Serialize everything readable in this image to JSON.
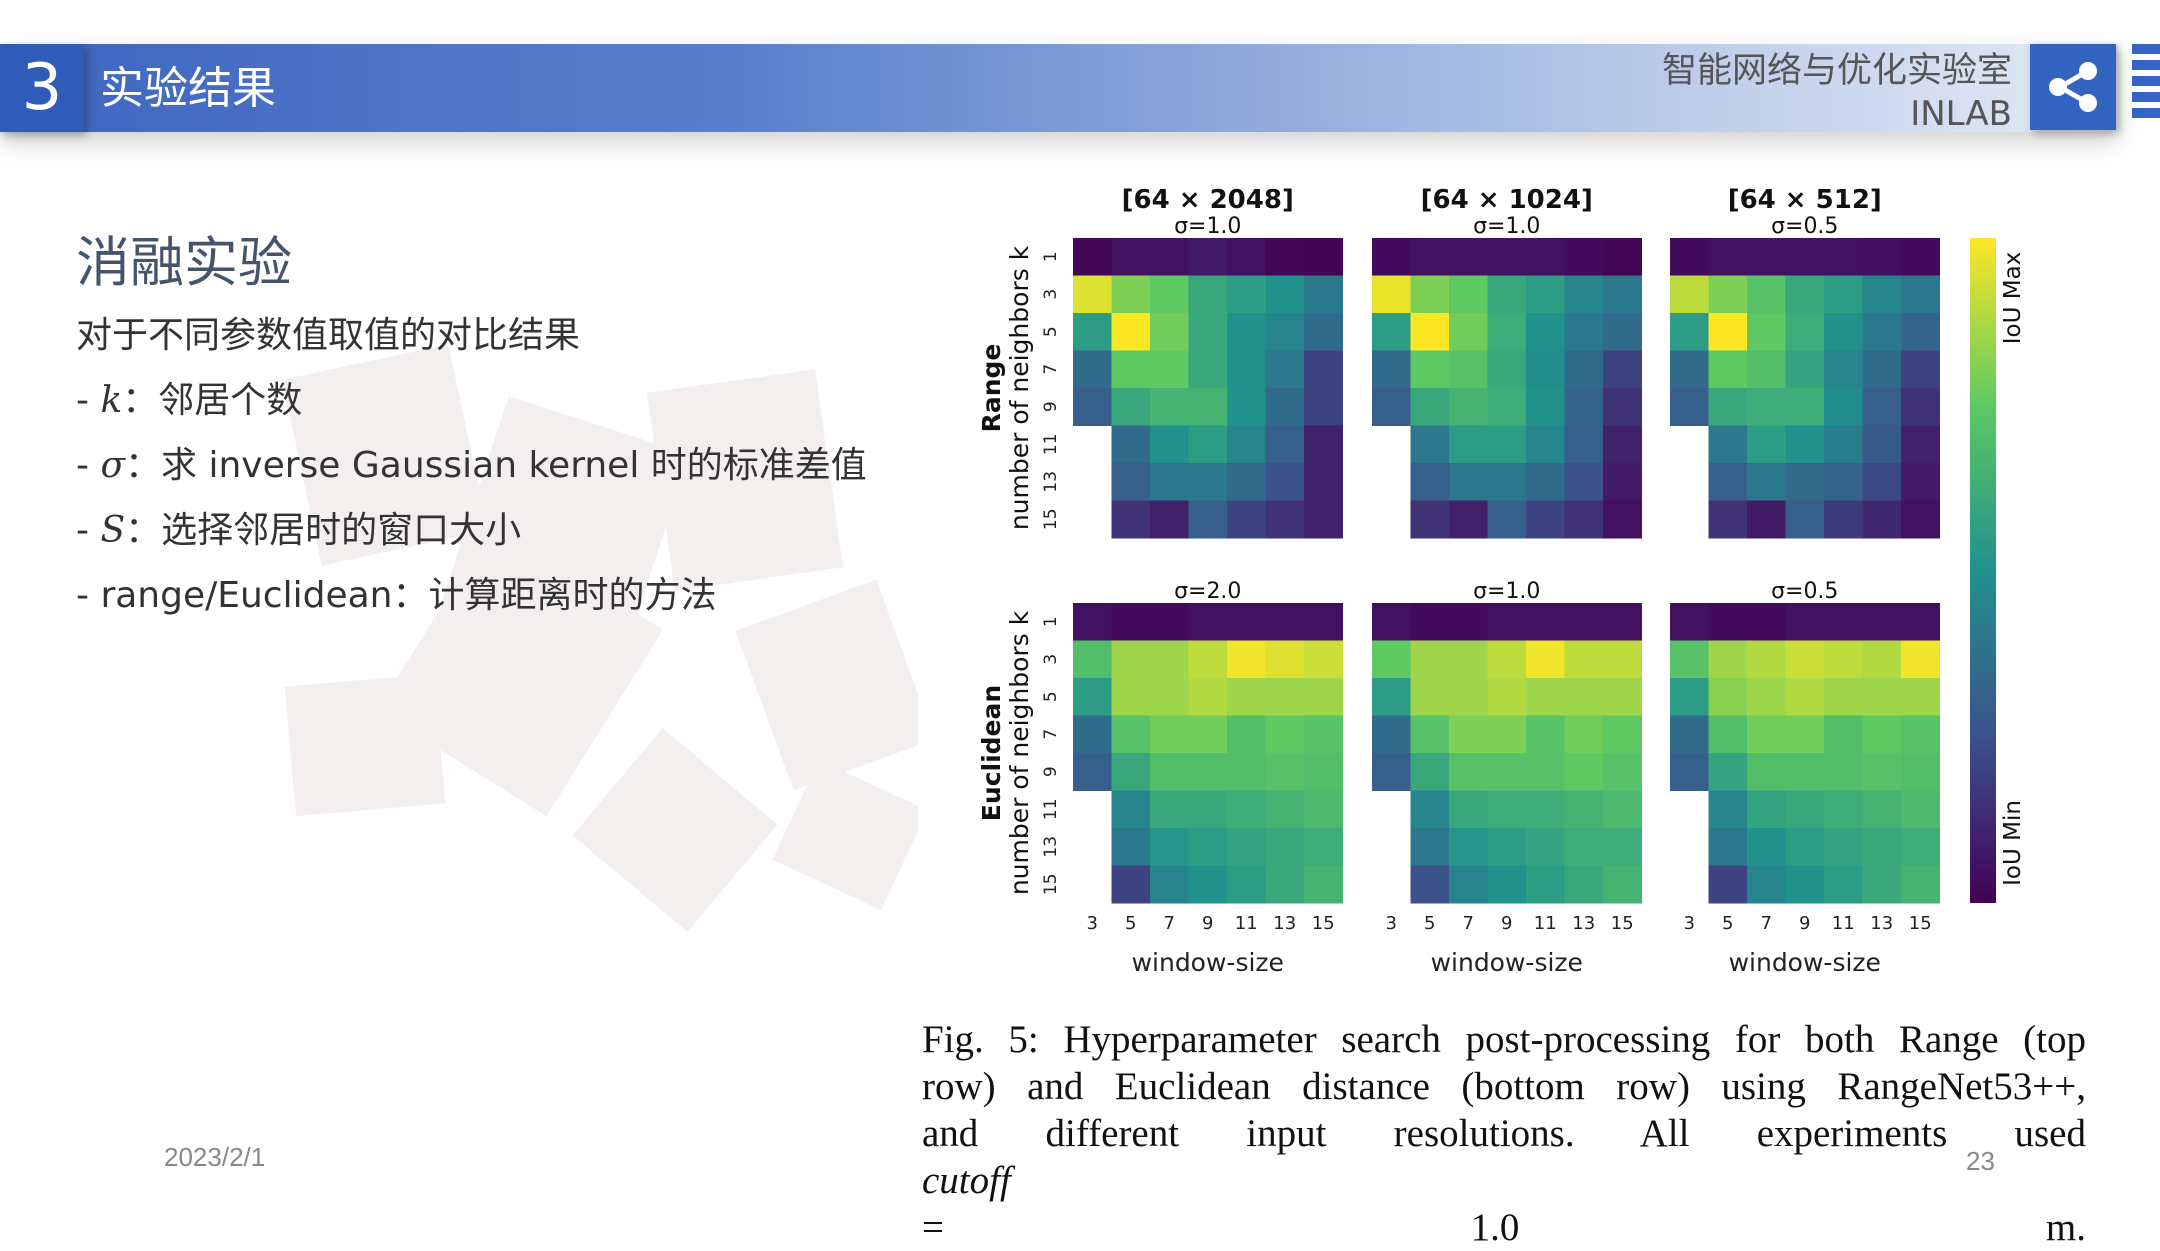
{
  "header": {
    "section_number": "3",
    "section_title": "实验结果",
    "lab_name": "智能网络与优化实验室",
    "lab_code": "INLAB",
    "share_icon": "share-icon",
    "menu_icon": "menu-icon",
    "brand_color": "#3563c2"
  },
  "content": {
    "title": "消融实验",
    "intro": "对于不同参数值取值的对比结果",
    "items": [
      {
        "prefix": "- ",
        "symbol": "k",
        "text": "：邻居个数"
      },
      {
        "prefix": "- ",
        "symbol": "σ",
        "text": "：求 inverse Gaussian kernel 时的标准差值"
      },
      {
        "prefix": "- ",
        "symbol": "S",
        "text": "：选择邻居时的窗口大小"
      },
      {
        "prefix": "- ",
        "symbol": "",
        "text": "range/Euclidean：计算距离时的方法"
      }
    ]
  },
  "footer": {
    "date": "2023/2/1",
    "page": "23"
  },
  "figure": {
    "caption_lines": [
      "Fig. 5: Hyperparameter search post-processing for both Range (top",
      "row) and Euclidean distance (bottom row) using RangeNet53++,",
      "and different input resolutions. All experiments used "
    ],
    "caption_italic": "cutoff",
    "caption_end": " = 1.0 m."
  },
  "chart_data": {
    "type": "heatmap",
    "colormap": "viridis",
    "colorbar": {
      "max_label": "IoU Max",
      "min_label": "IoU Min"
    },
    "x_ticks": [
      "3",
      "5",
      "7",
      "9",
      "11",
      "13",
      "15"
    ],
    "y_ticks": [
      "1",
      "3",
      "5",
      "7",
      "9",
      "11",
      "13",
      "15"
    ],
    "xlabel": "window-size",
    "ylabel_sub": "number of neighbors k",
    "row_labels": [
      "Range",
      "Euclidean"
    ],
    "col_titles": [
      "[64 × 2048]",
      "[64 × 1024]",
      "[64 × 512]"
    ],
    "panels": [
      {
        "row": 0,
        "col": 0,
        "title": "[64 × 2048]",
        "subtitle": "σ=1.0",
        "values": [
          [
            0.02,
            0.05,
            0.05,
            0.08,
            0.05,
            0.02,
            0.01
          ],
          [
            0.95,
            0.8,
            0.75,
            0.6,
            0.55,
            0.5,
            0.4
          ],
          [
            0.55,
            1.0,
            0.78,
            0.6,
            0.5,
            0.45,
            0.35
          ],
          [
            0.35,
            0.75,
            0.75,
            0.6,
            0.5,
            0.4,
            0.2
          ],
          [
            0.3,
            0.6,
            0.65,
            0.65,
            0.5,
            0.35,
            0.2
          ],
          [
            null,
            0.35,
            0.5,
            0.55,
            0.45,
            0.3,
            0.1
          ],
          [
            null,
            0.3,
            0.4,
            0.4,
            0.35,
            0.25,
            0.1
          ],
          [
            null,
            0.15,
            0.1,
            0.3,
            0.2,
            0.15,
            0.1
          ]
        ]
      },
      {
        "row": 0,
        "col": 1,
        "title": "[64 × 1024]",
        "subtitle": "σ=1.0",
        "values": [
          [
            0.03,
            0.05,
            0.05,
            0.05,
            0.05,
            0.03,
            0.02
          ],
          [
            0.97,
            0.8,
            0.75,
            0.6,
            0.55,
            0.45,
            0.4
          ],
          [
            0.55,
            1.0,
            0.78,
            0.62,
            0.5,
            0.4,
            0.35
          ],
          [
            0.35,
            0.75,
            0.72,
            0.6,
            0.48,
            0.35,
            0.2
          ],
          [
            0.3,
            0.6,
            0.65,
            0.62,
            0.5,
            0.32,
            0.15
          ],
          [
            null,
            0.4,
            0.55,
            0.55,
            0.45,
            0.3,
            0.1
          ],
          [
            null,
            0.3,
            0.4,
            0.4,
            0.35,
            0.25,
            0.08
          ],
          [
            null,
            0.15,
            0.1,
            0.3,
            0.2,
            0.15,
            0.05
          ]
        ]
      },
      {
        "row": 0,
        "col": 2,
        "title": "[64 × 512]",
        "subtitle": "σ=0.5",
        "values": [
          [
            0.03,
            0.05,
            0.05,
            0.05,
            0.05,
            0.04,
            0.03
          ],
          [
            0.9,
            0.8,
            0.72,
            0.6,
            0.55,
            0.45,
            0.4
          ],
          [
            0.55,
            1.0,
            0.75,
            0.62,
            0.5,
            0.4,
            0.32
          ],
          [
            0.35,
            0.75,
            0.7,
            0.58,
            0.45,
            0.35,
            0.2
          ],
          [
            0.3,
            0.6,
            0.62,
            0.62,
            0.48,
            0.3,
            0.15
          ],
          [
            null,
            0.4,
            0.55,
            0.5,
            0.42,
            0.28,
            0.1
          ],
          [
            null,
            0.3,
            0.4,
            0.35,
            0.32,
            0.22,
            0.08
          ],
          [
            null,
            0.15,
            0.08,
            0.3,
            0.18,
            0.12,
            0.05
          ]
        ]
      },
      {
        "row": 1,
        "col": 0,
        "title": "",
        "subtitle": "σ=2.0",
        "values": [
          [
            0.05,
            0.03,
            0.03,
            0.05,
            0.05,
            0.05,
            0.05
          ],
          [
            0.7,
            0.85,
            0.85,
            0.9,
            0.98,
            0.95,
            0.92
          ],
          [
            0.55,
            0.85,
            0.85,
            0.88,
            0.85,
            0.85,
            0.85
          ],
          [
            0.35,
            0.72,
            0.78,
            0.78,
            0.7,
            0.75,
            0.72
          ],
          [
            0.3,
            0.6,
            0.7,
            0.7,
            0.7,
            0.72,
            0.7
          ],
          [
            null,
            0.45,
            0.6,
            0.6,
            0.62,
            0.65,
            0.68
          ],
          [
            null,
            0.4,
            0.52,
            0.55,
            0.58,
            0.6,
            0.62
          ],
          [
            null,
            0.2,
            0.45,
            0.5,
            0.55,
            0.6,
            0.65
          ]
        ]
      },
      {
        "row": 1,
        "col": 1,
        "title": "",
        "subtitle": "σ=1.0",
        "values": [
          [
            0.05,
            0.03,
            0.03,
            0.05,
            0.05,
            0.05,
            0.05
          ],
          [
            0.75,
            0.85,
            0.85,
            0.9,
            0.98,
            0.9,
            0.9
          ],
          [
            0.55,
            0.85,
            0.85,
            0.88,
            0.85,
            0.85,
            0.85
          ],
          [
            0.35,
            0.72,
            0.8,
            0.8,
            0.72,
            0.78,
            0.75
          ],
          [
            0.3,
            0.6,
            0.72,
            0.72,
            0.72,
            0.75,
            0.72
          ],
          [
            null,
            0.45,
            0.6,
            0.62,
            0.62,
            0.65,
            0.68
          ],
          [
            null,
            0.4,
            0.52,
            0.55,
            0.58,
            0.62,
            0.62
          ],
          [
            null,
            0.25,
            0.45,
            0.5,
            0.55,
            0.6,
            0.65
          ]
        ]
      },
      {
        "row": 1,
        "col": 2,
        "title": "",
        "subtitle": "σ=0.5",
        "values": [
          [
            0.05,
            0.03,
            0.03,
            0.05,
            0.05,
            0.05,
            0.05
          ],
          [
            0.72,
            0.85,
            0.88,
            0.92,
            0.9,
            0.88,
            0.98
          ],
          [
            0.55,
            0.82,
            0.85,
            0.88,
            0.85,
            0.85,
            0.85
          ],
          [
            0.35,
            0.7,
            0.78,
            0.78,
            0.7,
            0.75,
            0.72
          ],
          [
            0.3,
            0.58,
            0.7,
            0.7,
            0.7,
            0.72,
            0.7
          ],
          [
            null,
            0.45,
            0.58,
            0.6,
            0.62,
            0.65,
            0.68
          ],
          [
            null,
            0.4,
            0.5,
            0.55,
            0.58,
            0.6,
            0.62
          ],
          [
            null,
            0.2,
            0.45,
            0.5,
            0.55,
            0.6,
            0.65
          ]
        ]
      }
    ]
  }
}
